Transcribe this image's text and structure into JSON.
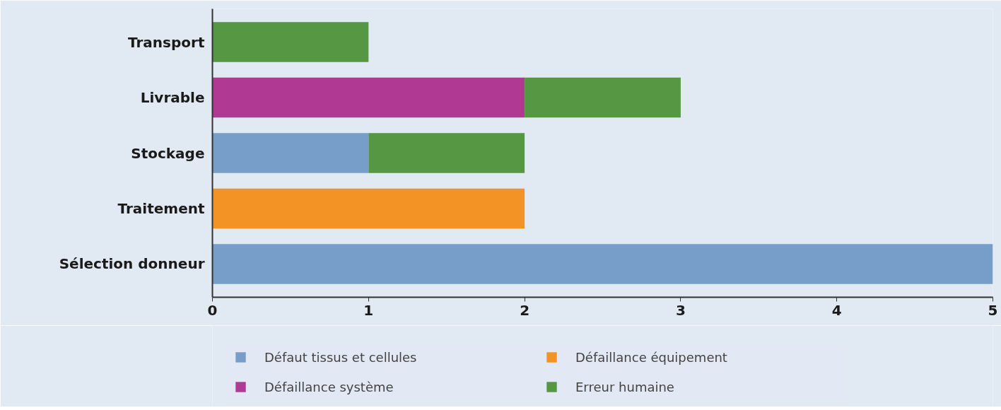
{
  "chart_data": {
    "type": "bar",
    "orientation": "horizontal",
    "stacked": true,
    "categories": [
      "Transport",
      "Livrable",
      "Stockage",
      "Traitement",
      "Sélection donneur"
    ],
    "series": [
      {
        "name": "Défaut tissus et cellules",
        "color": "#779ec9",
        "values": [
          null,
          null,
          1,
          null,
          5
        ]
      },
      {
        "name": "Défaillance système",
        "color": "#b03a93",
        "values": [
          null,
          2,
          null,
          null,
          null
        ]
      },
      {
        "name": "Défaillance équipement",
        "color": "#f39325",
        "values": [
          null,
          null,
          null,
          2,
          null
        ]
      },
      {
        "name": "Erreur humaine",
        "color": "#559743",
        "values": [
          1,
          1,
          1,
          null,
          null
        ]
      }
    ],
    "xlim": [
      0,
      5
    ],
    "xticks": [
      0,
      1,
      2,
      3,
      4,
      5
    ],
    "grid": false,
    "legend": "bottom"
  }
}
